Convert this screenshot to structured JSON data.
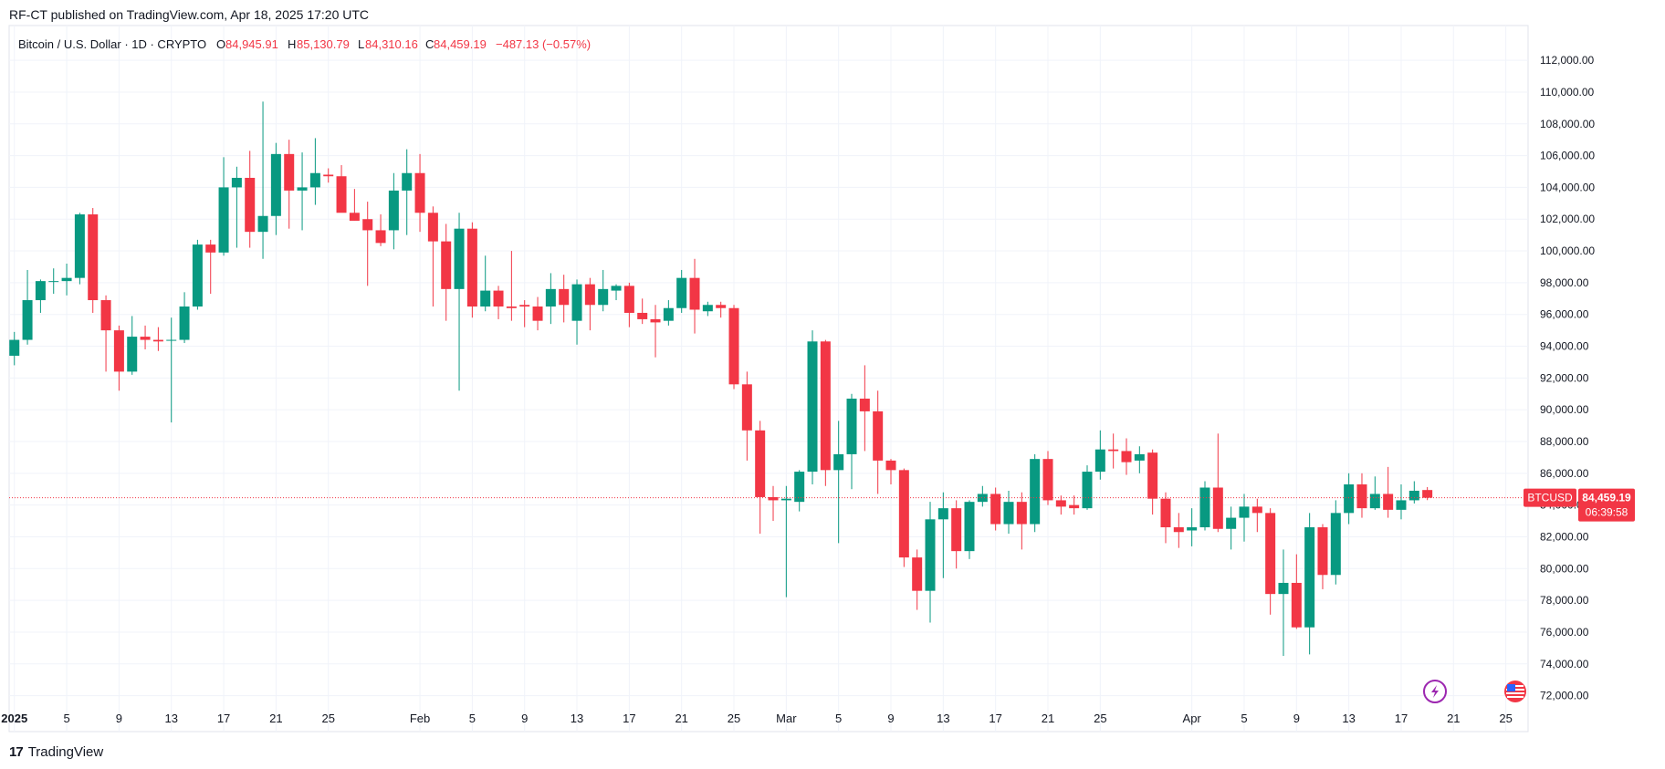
{
  "publish": {
    "text": "RF-CT published on TradingView.com, Apr 18, 2025 17:20 UTC"
  },
  "footer": {
    "brand": "TradingView"
  },
  "colors": {
    "up": "#089981",
    "down": "#f23645",
    "grid": "#f0f3fa",
    "axis_text": "#131722"
  },
  "legend": {
    "symbol": "Bitcoin / U.S. Dollar · 1D · CRYPTO",
    "o_label": "O",
    "o_val": "84,945.91",
    "h_label": "H",
    "h_val": "85,130.79",
    "l_label": "L",
    "l_val": "84,310.16",
    "c_label": "C",
    "c_val": "84,459.19",
    "change": "−487.13 (−0.57%)"
  },
  "price_tag": {
    "symbol": "BTCUSD",
    "price": "84,459.19",
    "countdown": "06:39:58"
  },
  "chart_data": {
    "type": "candlestick",
    "title": "Bitcoin / U.S. Dollar · 1D · CRYPTO",
    "ylim": [
      71000,
      113500
    ],
    "y_ticks": [
      72000,
      74000,
      76000,
      78000,
      80000,
      82000,
      84000,
      86000,
      88000,
      90000,
      92000,
      94000,
      96000,
      98000,
      100000,
      102000,
      104000,
      106000,
      108000,
      110000,
      112000
    ],
    "y_tick_labels": [
      "72,000.00",
      "74,000.00",
      "76,000.00",
      "78,000.00",
      "80,000.00",
      "82,000.00",
      "84,000.00",
      "86,000.00",
      "88,000.00",
      "90,000.00",
      "92,000.00",
      "94,000.00",
      "96,000.00",
      "98,000.00",
      "100,000.00",
      "102,000.00",
      "104,000.00",
      "106,000.00",
      "108,000.00",
      "110,000.00",
      "112,000.00"
    ],
    "x_ticks": [
      {
        "day": 0,
        "label": "2025",
        "bold": true
      },
      {
        "day": 4,
        "label": "5"
      },
      {
        "day": 8,
        "label": "9"
      },
      {
        "day": 12,
        "label": "13"
      },
      {
        "day": 16,
        "label": "17"
      },
      {
        "day": 20,
        "label": "21"
      },
      {
        "day": 24,
        "label": "25"
      },
      {
        "day": 31,
        "label": "Feb"
      },
      {
        "day": 35,
        "label": "5"
      },
      {
        "day": 39,
        "label": "9"
      },
      {
        "day": 43,
        "label": "13"
      },
      {
        "day": 47,
        "label": "17"
      },
      {
        "day": 51,
        "label": "21"
      },
      {
        "day": 55,
        "label": "25"
      },
      {
        "day": 59,
        "label": "Mar"
      },
      {
        "day": 63,
        "label": "5"
      },
      {
        "day": 67,
        "label": "9"
      },
      {
        "day": 71,
        "label": "13"
      },
      {
        "day": 75,
        "label": "17"
      },
      {
        "day": 79,
        "label": "21"
      },
      {
        "day": 83,
        "label": "25"
      },
      {
        "day": 90,
        "label": "Apr"
      },
      {
        "day": 94,
        "label": "5"
      },
      {
        "day": 98,
        "label": "9"
      },
      {
        "day": 102,
        "label": "13"
      },
      {
        "day": 106,
        "label": "17"
      },
      {
        "day": 110,
        "label": "21"
      },
      {
        "day": 114,
        "label": "25"
      }
    ],
    "x_range_days": [
      -0.4,
      115.7
    ],
    "current_price": 84459.19,
    "candles": [
      {
        "o": 93400,
        "h": 94900,
        "l": 92800,
        "c": 94400
      },
      {
        "o": 94400,
        "h": 98800,
        "l": 94100,
        "c": 96900
      },
      {
        "o": 96900,
        "h": 98200,
        "l": 96100,
        "c": 98100
      },
      {
        "o": 98100,
        "h": 98900,
        "l": 97300,
        "c": 98100
      },
      {
        "o": 98100,
        "h": 99200,
        "l": 97200,
        "c": 98300
      },
      {
        "o": 98300,
        "h": 102400,
        "l": 97900,
        "c": 102300
      },
      {
        "o": 102300,
        "h": 102700,
        "l": 96100,
        "c": 96900
      },
      {
        "o": 96900,
        "h": 97200,
        "l": 92400,
        "c": 95000
      },
      {
        "o": 95000,
        "h": 95300,
        "l": 91200,
        "c": 92400
      },
      {
        "o": 92400,
        "h": 95900,
        "l": 92200,
        "c": 94600
      },
      {
        "o": 94600,
        "h": 95300,
        "l": 93800,
        "c": 94400
      },
      {
        "o": 94400,
        "h": 95200,
        "l": 93700,
        "c": 94300
      },
      {
        "o": 94400,
        "h": 95800,
        "l": 89200,
        "c": 94400
      },
      {
        "o": 94400,
        "h": 97400,
        "l": 94200,
        "c": 96500
      },
      {
        "o": 96500,
        "h": 100700,
        "l": 96300,
        "c": 100400
      },
      {
        "o": 100400,
        "h": 100700,
        "l": 97300,
        "c": 99900
      },
      {
        "o": 99900,
        "h": 105900,
        "l": 99700,
        "c": 104000
      },
      {
        "o": 104000,
        "h": 105300,
        "l": 100200,
        "c": 104600
      },
      {
        "o": 104600,
        "h": 106300,
        "l": 100200,
        "c": 101200
      },
      {
        "o": 101200,
        "h": 109400,
        "l": 99500,
        "c": 102200
      },
      {
        "o": 102200,
        "h": 106800,
        "l": 101000,
        "c": 106100
      },
      {
        "o": 106100,
        "h": 107000,
        "l": 101400,
        "c": 103800
      },
      {
        "o": 103800,
        "h": 106200,
        "l": 101300,
        "c": 104000
      },
      {
        "o": 104000,
        "h": 107100,
        "l": 102900,
        "c": 104900
      },
      {
        "o": 104800,
        "h": 105200,
        "l": 104300,
        "c": 104700
      },
      {
        "o": 104700,
        "h": 105400,
        "l": 102600,
        "c": 102400
      },
      {
        "o": 102400,
        "h": 103900,
        "l": 101900,
        "c": 101900
      },
      {
        "o": 102000,
        "h": 103100,
        "l": 97800,
        "c": 101300
      },
      {
        "o": 101300,
        "h": 102300,
        "l": 100300,
        "c": 100500
      },
      {
        "o": 101300,
        "h": 104900,
        "l": 100100,
        "c": 103800
      },
      {
        "o": 103800,
        "h": 106400,
        "l": 101000,
        "c": 104900
      },
      {
        "o": 104900,
        "h": 106100,
        "l": 101200,
        "c": 102400
      },
      {
        "o": 102400,
        "h": 102800,
        "l": 96500,
        "c": 100600
      },
      {
        "o": 100600,
        "h": 101700,
        "l": 95600,
        "c": 97600
      },
      {
        "o": 97600,
        "h": 102400,
        "l": 91200,
        "c": 101400
      },
      {
        "o": 101400,
        "h": 101800,
        "l": 95800,
        "c": 96500
      },
      {
        "o": 96500,
        "h": 99700,
        "l": 96200,
        "c": 97500
      },
      {
        "o": 97500,
        "h": 97800,
        "l": 95700,
        "c": 96500
      },
      {
        "o": 96500,
        "h": 100000,
        "l": 95600,
        "c": 96400
      },
      {
        "o": 96600,
        "h": 96900,
        "l": 95200,
        "c": 96500
      },
      {
        "o": 96500,
        "h": 97100,
        "l": 95000,
        "c": 95600
      },
      {
        "o": 96500,
        "h": 98600,
        "l": 95400,
        "c": 97600
      },
      {
        "o": 97600,
        "h": 98500,
        "l": 95500,
        "c": 96600
      },
      {
        "o": 95600,
        "h": 98200,
        "l": 94100,
        "c": 97900
      },
      {
        "o": 97900,
        "h": 98300,
        "l": 95000,
        "c": 96600
      },
      {
        "o": 96600,
        "h": 98800,
        "l": 96200,
        "c": 97600
      },
      {
        "o": 97500,
        "h": 97900,
        "l": 96900,
        "c": 97800
      },
      {
        "o": 97800,
        "h": 98000,
        "l": 95200,
        "c": 96100
      },
      {
        "o": 96100,
        "h": 97000,
        "l": 95400,
        "c": 95700
      },
      {
        "o": 95700,
        "h": 96600,
        "l": 93300,
        "c": 95500
      },
      {
        "o": 95600,
        "h": 96900,
        "l": 95300,
        "c": 96400
      },
      {
        "o": 96400,
        "h": 98800,
        "l": 96100,
        "c": 98300
      },
      {
        "o": 98300,
        "h": 99500,
        "l": 94800,
        "c": 96300
      },
      {
        "o": 96200,
        "h": 96800,
        "l": 95900,
        "c": 96600
      },
      {
        "o": 96600,
        "h": 96800,
        "l": 95800,
        "c": 96400
      },
      {
        "o": 96400,
        "h": 96600,
        "l": 91300,
        "c": 91600
      },
      {
        "o": 91600,
        "h": 92400,
        "l": 86800,
        "c": 88700
      },
      {
        "o": 88700,
        "h": 89300,
        "l": 82200,
        "c": 84500
      },
      {
        "o": 84500,
        "h": 85200,
        "l": 83000,
        "c": 84300
      },
      {
        "o": 84300,
        "h": 85200,
        "l": 78200,
        "c": 84400
      },
      {
        "o": 84200,
        "h": 86200,
        "l": 83600,
        "c": 86100
      },
      {
        "o": 86100,
        "h": 95000,
        "l": 85300,
        "c": 94300
      },
      {
        "o": 94300,
        "h": 94400,
        "l": 85200,
        "c": 86200
      },
      {
        "o": 86200,
        "h": 89300,
        "l": 81600,
        "c": 87200
      },
      {
        "o": 87200,
        "h": 91000,
        "l": 85000,
        "c": 90700
      },
      {
        "o": 90700,
        "h": 92800,
        "l": 87400,
        "c": 89900
      },
      {
        "o": 89900,
        "h": 91200,
        "l": 84700,
        "c": 86800
      },
      {
        "o": 86800,
        "h": 86900,
        "l": 85300,
        "c": 86200
      },
      {
        "o": 86200,
        "h": 86300,
        "l": 80100,
        "c": 80700
      },
      {
        "o": 80700,
        "h": 81200,
        "l": 77400,
        "c": 78600
      },
      {
        "o": 78600,
        "h": 84200,
        "l": 76600,
        "c": 83100
      },
      {
        "o": 83100,
        "h": 84800,
        "l": 79400,
        "c": 83800
      },
      {
        "o": 83800,
        "h": 84300,
        "l": 80000,
        "c": 81100
      },
      {
        "o": 81100,
        "h": 84300,
        "l": 80600,
        "c": 84200
      },
      {
        "o": 84200,
        "h": 85200,
        "l": 83900,
        "c": 84700
      },
      {
        "o": 84700,
        "h": 85100,
        "l": 82400,
        "c": 82800
      },
      {
        "o": 82800,
        "h": 84900,
        "l": 82200,
        "c": 84200
      },
      {
        "o": 84200,
        "h": 84800,
        "l": 81200,
        "c": 82800
      },
      {
        "o": 82800,
        "h": 87200,
        "l": 82300,
        "c": 86900
      },
      {
        "o": 86900,
        "h": 87400,
        "l": 84000,
        "c": 84300
      },
      {
        "o": 84300,
        "h": 84600,
        "l": 83400,
        "c": 83900
      },
      {
        "o": 84000,
        "h": 84600,
        "l": 83400,
        "c": 83800
      },
      {
        "o": 83800,
        "h": 86500,
        "l": 83700,
        "c": 86100
      },
      {
        "o": 86100,
        "h": 88700,
        "l": 85600,
        "c": 87500
      },
      {
        "o": 87500,
        "h": 88500,
        "l": 86300,
        "c": 87400
      },
      {
        "o": 87400,
        "h": 88200,
        "l": 85900,
        "c": 86700
      },
      {
        "o": 86800,
        "h": 87700,
        "l": 86000,
        "c": 87200
      },
      {
        "o": 87300,
        "h": 87500,
        "l": 83400,
        "c": 84400
      },
      {
        "o": 84400,
        "h": 84800,
        "l": 81600,
        "c": 82600
      },
      {
        "o": 82600,
        "h": 83500,
        "l": 81300,
        "c": 82300
      },
      {
        "o": 82400,
        "h": 83800,
        "l": 81400,
        "c": 82600
      },
      {
        "o": 82600,
        "h": 85500,
        "l": 82400,
        "c": 85100
      },
      {
        "o": 85100,
        "h": 88500,
        "l": 82300,
        "c": 82500
      },
      {
        "o": 82500,
        "h": 83900,
        "l": 81200,
        "c": 83200
      },
      {
        "o": 83200,
        "h": 84700,
        "l": 81700,
        "c": 83900
      },
      {
        "o": 83900,
        "h": 84400,
        "l": 82300,
        "c": 83500
      },
      {
        "o": 83500,
        "h": 83800,
        "l": 77100,
        "c": 78400
      },
      {
        "o": 78400,
        "h": 81200,
        "l": 74500,
        "c": 79100
      },
      {
        "o": 79100,
        "h": 80900,
        "l": 76200,
        "c": 76300
      },
      {
        "o": 76300,
        "h": 83500,
        "l": 74600,
        "c": 82600
      },
      {
        "o": 82600,
        "h": 82800,
        "l": 78700,
        "c": 79600
      },
      {
        "o": 79600,
        "h": 84300,
        "l": 79000,
        "c": 83500
      },
      {
        "o": 83500,
        "h": 86000,
        "l": 82800,
        "c": 85300
      },
      {
        "o": 85300,
        "h": 86000,
        "l": 83200,
        "c": 83800
      },
      {
        "o": 83800,
        "h": 85800,
        "l": 83700,
        "c": 84700
      },
      {
        "o": 84700,
        "h": 86400,
        "l": 83200,
        "c": 83700
      },
      {
        "o": 83700,
        "h": 85300,
        "l": 83100,
        "c": 84300
      },
      {
        "o": 84300,
        "h": 85500,
        "l": 84100,
        "c": 84900
      },
      {
        "o": 84945.91,
        "h": 85130.79,
        "l": 84310.16,
        "c": 84459.19
      }
    ]
  }
}
